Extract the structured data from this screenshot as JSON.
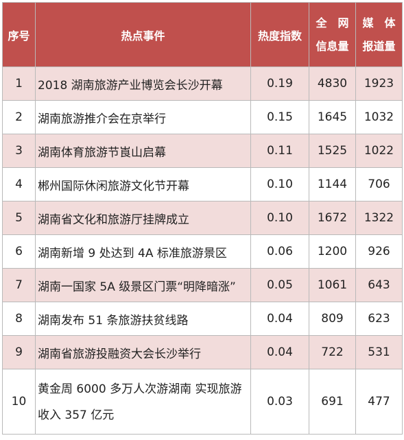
{
  "header": {
    "index": "序号",
    "event": "热点事件",
    "heat": "热度指数",
    "info_line1": "全　网",
    "info_line2": "信息量",
    "media_line1": "媒　体",
    "media_line2": "报道量"
  },
  "rows": [
    {
      "index": "1",
      "event": "2018 湖南旅游产业博览会长沙开幕",
      "heat": "0.19",
      "info": "4830",
      "media": "1923"
    },
    {
      "index": "2",
      "event": "湖南旅游推介会在京举行",
      "heat": "0.15",
      "info": "1645",
      "media": "1032"
    },
    {
      "index": "3",
      "event": "湖南体育旅游节崀山启幕",
      "heat": "0.11",
      "info": "1525",
      "media": "1022"
    },
    {
      "index": "4",
      "event": "郴州国际休闲旅游文化节开幕",
      "heat": "0.10",
      "info": "1144",
      "media": "706"
    },
    {
      "index": "5",
      "event": "湖南省文化和旅游厅挂牌成立",
      "heat": "0.10",
      "info": "1672",
      "media": "1322"
    },
    {
      "index": "6",
      "event": "湖南新增 9 处达到 4A 标准旅游景区",
      "heat": "0.06",
      "info": "1200",
      "media": "926"
    },
    {
      "index": "7",
      "event": "湖南一国家 5A 级景区门票“明降暗涨”",
      "heat": "0.05",
      "info": "1061",
      "media": "643"
    },
    {
      "index": "8",
      "event": "湖南发布 51 条旅游扶贫线路",
      "heat": "0.04",
      "info": "809",
      "media": "623"
    },
    {
      "index": "9",
      "event": "湖南省旅游投融资大会长沙举行",
      "heat": "0.04",
      "info": "722",
      "media": "531"
    },
    {
      "index": "10",
      "event": "黄金周 6000 多万人次游湖南 实现旅游收入 357 亿元",
      "heat": "0.03",
      "info": "691",
      "media": "477"
    }
  ],
  "colors": {
    "header_bg": "#c0504d",
    "header_text": "#ffffff",
    "stripe_bg": "#f2dcdb",
    "border": "#b9b9b9"
  }
}
